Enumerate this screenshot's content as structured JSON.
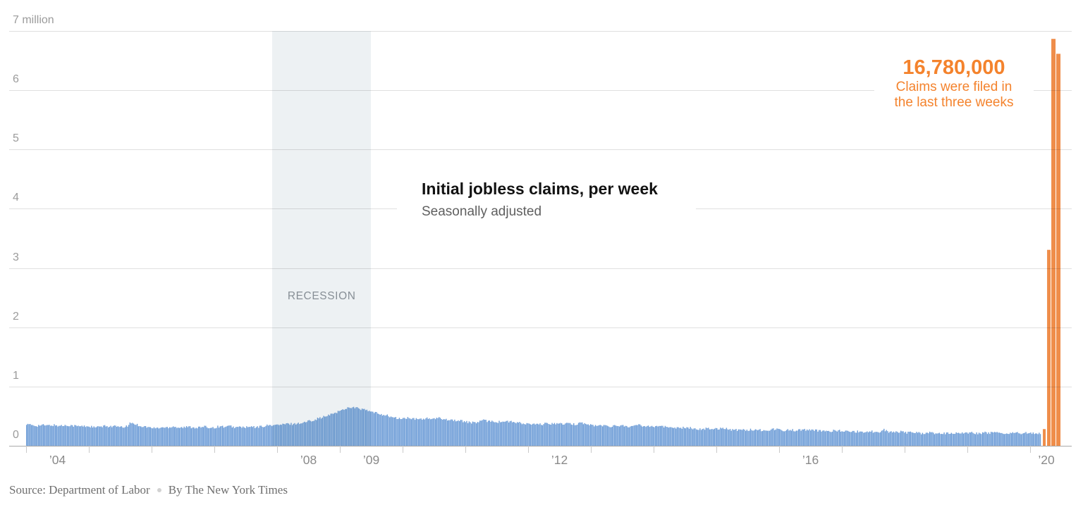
{
  "colors": {
    "bar_blue": "#6b9bd6",
    "bar_orange": "#ef8d4a",
    "annotation_orange": "#f4832d",
    "recession_band": "rgba(45,95,115,0.085)"
  },
  "chart_data": {
    "type": "bar",
    "title": "Initial jobless claims, per week",
    "subtitle": "Seasonally adjusted",
    "source": "Source: Department of Labor",
    "byline": "By The New York Times",
    "annotation": {
      "value": "16,780,000",
      "line1": "Claims were filed in",
      "line2": "the last three weeks"
    },
    "recession": {
      "label": "RECESSION",
      "start_year_decimal": 2007.92,
      "end_year_decimal": 2009.5
    },
    "y_axis": {
      "unit": "millions of claims",
      "range": [
        0,
        7
      ],
      "tick_labels": [
        {
          "value": 0,
          "label": "0"
        },
        {
          "value": 1,
          "label": "1"
        },
        {
          "value": 2,
          "label": "2"
        },
        {
          "value": 3,
          "label": "3"
        },
        {
          "value": 4,
          "label": "4"
        },
        {
          "value": 5,
          "label": "5"
        },
        {
          "value": 6,
          "label": "6"
        },
        {
          "value": 7,
          "label": "7 million"
        }
      ]
    },
    "x_axis": {
      "tick_years_start": 2004,
      "tick_years_end": 2020,
      "labels": [
        {
          "year": 2004,
          "label": "’04"
        },
        {
          "year": 2008,
          "label": "’08"
        },
        {
          "year": 2009,
          "label": "’09"
        },
        {
          "year": 2012,
          "label": "’12"
        },
        {
          "year": 2016,
          "label": "’16"
        },
        {
          "year": 2020,
          "label": "’20"
        }
      ]
    },
    "series_monthly_millions": {
      "start": "2004-01",
      "end": "2020-02",
      "values": [
        0.36,
        0.35,
        0.34,
        0.35,
        0.34,
        0.35,
        0.34,
        0.34,
        0.35,
        0.34,
        0.33,
        0.33,
        0.33,
        0.31,
        0.32,
        0.33,
        0.33,
        0.33,
        0.31,
        0.32,
        0.39,
        0.36,
        0.33,
        0.32,
        0.3,
        0.3,
        0.31,
        0.31,
        0.33,
        0.31,
        0.31,
        0.32,
        0.31,
        0.31,
        0.32,
        0.31,
        0.31,
        0.33,
        0.32,
        0.33,
        0.31,
        0.32,
        0.31,
        0.32,
        0.31,
        0.33,
        0.34,
        0.35,
        0.35,
        0.36,
        0.37,
        0.37,
        0.38,
        0.39,
        0.42,
        0.44,
        0.47,
        0.49,
        0.52,
        0.56,
        0.59,
        0.63,
        0.655,
        0.64,
        0.62,
        0.6,
        0.57,
        0.55,
        0.53,
        0.51,
        0.48,
        0.46,
        0.46,
        0.47,
        0.45,
        0.45,
        0.46,
        0.46,
        0.45,
        0.47,
        0.45,
        0.44,
        0.43,
        0.42,
        0.41,
        0.39,
        0.39,
        0.43,
        0.42,
        0.42,
        0.4,
        0.41,
        0.41,
        0.4,
        0.39,
        0.37,
        0.37,
        0.36,
        0.36,
        0.37,
        0.37,
        0.38,
        0.37,
        0.37,
        0.37,
        0.36,
        0.4,
        0.36,
        0.35,
        0.34,
        0.34,
        0.34,
        0.33,
        0.34,
        0.34,
        0.33,
        0.32,
        0.36,
        0.33,
        0.34,
        0.33,
        0.34,
        0.32,
        0.31,
        0.31,
        0.31,
        0.3,
        0.3,
        0.29,
        0.28,
        0.29,
        0.29,
        0.29,
        0.3,
        0.29,
        0.27,
        0.27,
        0.27,
        0.27,
        0.27,
        0.27,
        0.26,
        0.27,
        0.28,
        0.28,
        0.26,
        0.27,
        0.26,
        0.27,
        0.27,
        0.26,
        0.26,
        0.25,
        0.25,
        0.25,
        0.26,
        0.25,
        0.24,
        0.24,
        0.24,
        0.24,
        0.24,
        0.24,
        0.24,
        0.27,
        0.23,
        0.24,
        0.24,
        0.22,
        0.23,
        0.23,
        0.21,
        0.22,
        0.22,
        0.21,
        0.21,
        0.21,
        0.21,
        0.22,
        0.22,
        0.22,
        0.22,
        0.21,
        0.22,
        0.22,
        0.22,
        0.21,
        0.21,
        0.21,
        0.22,
        0.21,
        0.22,
        0.21,
        0.21
      ]
    },
    "highlight_weeks_millions": [
      0.282,
      3.307,
      6.867,
      6.615
    ]
  }
}
